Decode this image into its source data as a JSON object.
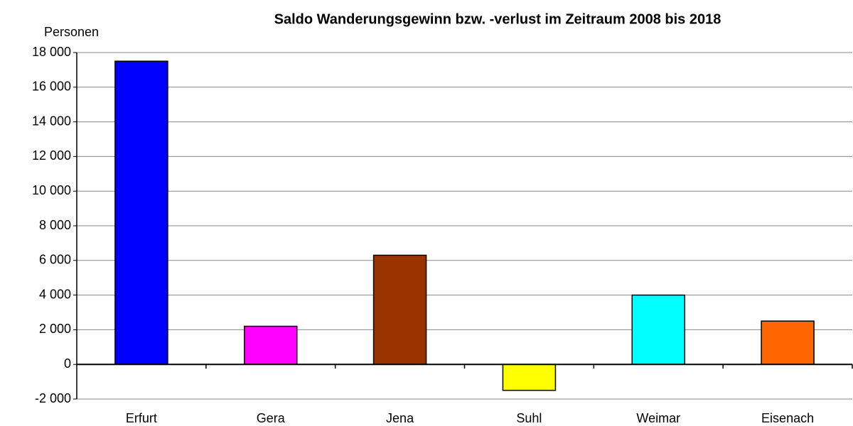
{
  "chart_data": {
    "type": "bar",
    "title": "Saldo Wanderungsgewinn bzw. -verlust im Zeitraum 2008 bis 2018",
    "y_label": "Personen",
    "categories": [
      "Erfurt",
      "Gera",
      "Jena",
      "Suhl",
      "Weimar",
      "Eisenach"
    ],
    "values": [
      17500,
      2200,
      6300,
      -1500,
      4000,
      2500
    ],
    "colors": [
      "#0000ff",
      "#ff00ff",
      "#993300",
      "#ffff00",
      "#00ffff",
      "#ff6600"
    ],
    "ylim": [
      -2000,
      18000
    ],
    "yticks": [
      {
        "value": -2000,
        "label": "-2 000"
      },
      0,
      {
        "value": 2000,
        "label": "2 000"
      },
      {
        "value": 4000,
        "label": "4 000"
      },
      {
        "value": 6000,
        "label": "6 000"
      },
      {
        "value": 8000,
        "label": "8 000"
      },
      {
        "value": 10000,
        "label": "10 000"
      },
      {
        "value": 12000,
        "label": "12 000"
      },
      {
        "value": 14000,
        "label": "14 000"
      },
      {
        "value": 16000,
        "label": "16 000"
      },
      {
        "value": 18000,
        "label": "18 000"
      }
    ],
    "grid": true
  }
}
